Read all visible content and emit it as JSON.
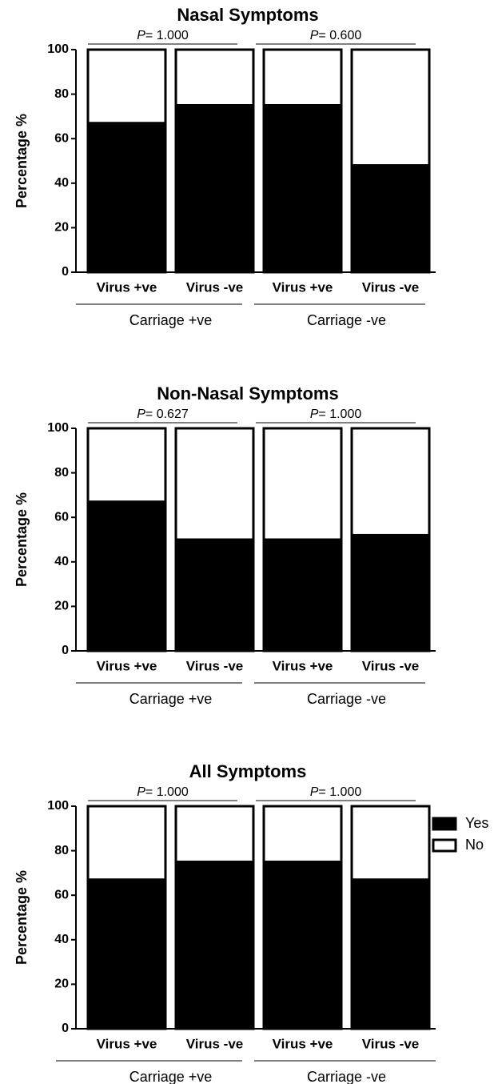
{
  "chart_data": [
    {
      "type": "stacked_bar",
      "title": "Nasal Symptoms",
      "ylabel": "Percentage %",
      "categories": [
        "Virus +ve",
        "Virus -ve",
        "Virus +ve",
        "Virus -ve"
      ],
      "groups": [
        "Carriage +ve",
        "Carriage -ve"
      ],
      "annotations": [
        {
          "italic": "P",
          "text": "= 1.000"
        },
        {
          "italic": "P",
          "text": "= 0.600"
        }
      ],
      "series": [
        {
          "name": "Yes",
          "color": "#000000",
          "values": [
            67,
            75,
            75,
            48
          ]
        },
        {
          "name": "No",
          "color": "#ffffff",
          "values": [
            33,
            25,
            25,
            52
          ]
        }
      ],
      "ylim": [
        0,
        100
      ],
      "yticks": [
        0,
        20,
        40,
        60,
        80,
        100
      ]
    },
    {
      "type": "stacked_bar",
      "title": "Non-Nasal Symptoms",
      "ylabel": "Percentage %",
      "categories": [
        "Virus +ve",
        "Virus -ve",
        "Virus +ve",
        "Virus -ve"
      ],
      "groups": [
        "Carriage +ve",
        "Carriage -ve"
      ],
      "annotations": [
        {
          "italic": "P",
          "text": "= 0.627"
        },
        {
          "italic": "P",
          "text": "= 1.000"
        }
      ],
      "series": [
        {
          "name": "Yes",
          "color": "#000000",
          "values": [
            67,
            50,
            50,
            52
          ]
        },
        {
          "name": "No",
          "color": "#ffffff",
          "values": [
            33,
            50,
            50,
            48
          ]
        }
      ],
      "ylim": [
        0,
        100
      ],
      "yticks": [
        0,
        20,
        40,
        60,
        80,
        100
      ]
    },
    {
      "type": "stacked_bar",
      "title": "All Symptoms",
      "ylabel": "Percentage %",
      "categories": [
        "Virus +ve",
        "Virus -ve",
        "Virus +ve",
        "Virus -ve"
      ],
      "groups": [
        "Carriage +ve",
        "Carriage -ve"
      ],
      "annotations": [
        {
          "italic": "P",
          "text": "= 1.000"
        },
        {
          "italic": "P",
          "text": "= 1.000"
        }
      ],
      "series": [
        {
          "name": "Yes",
          "color": "#000000",
          "values": [
            67,
            75,
            75,
            67
          ]
        },
        {
          "name": "No",
          "color": "#ffffff",
          "values": [
            33,
            25,
            25,
            33
          ]
        }
      ],
      "ylim": [
        0,
        100
      ],
      "yticks": [
        0,
        20,
        40,
        60,
        80,
        100
      ],
      "legend": "right"
    }
  ]
}
